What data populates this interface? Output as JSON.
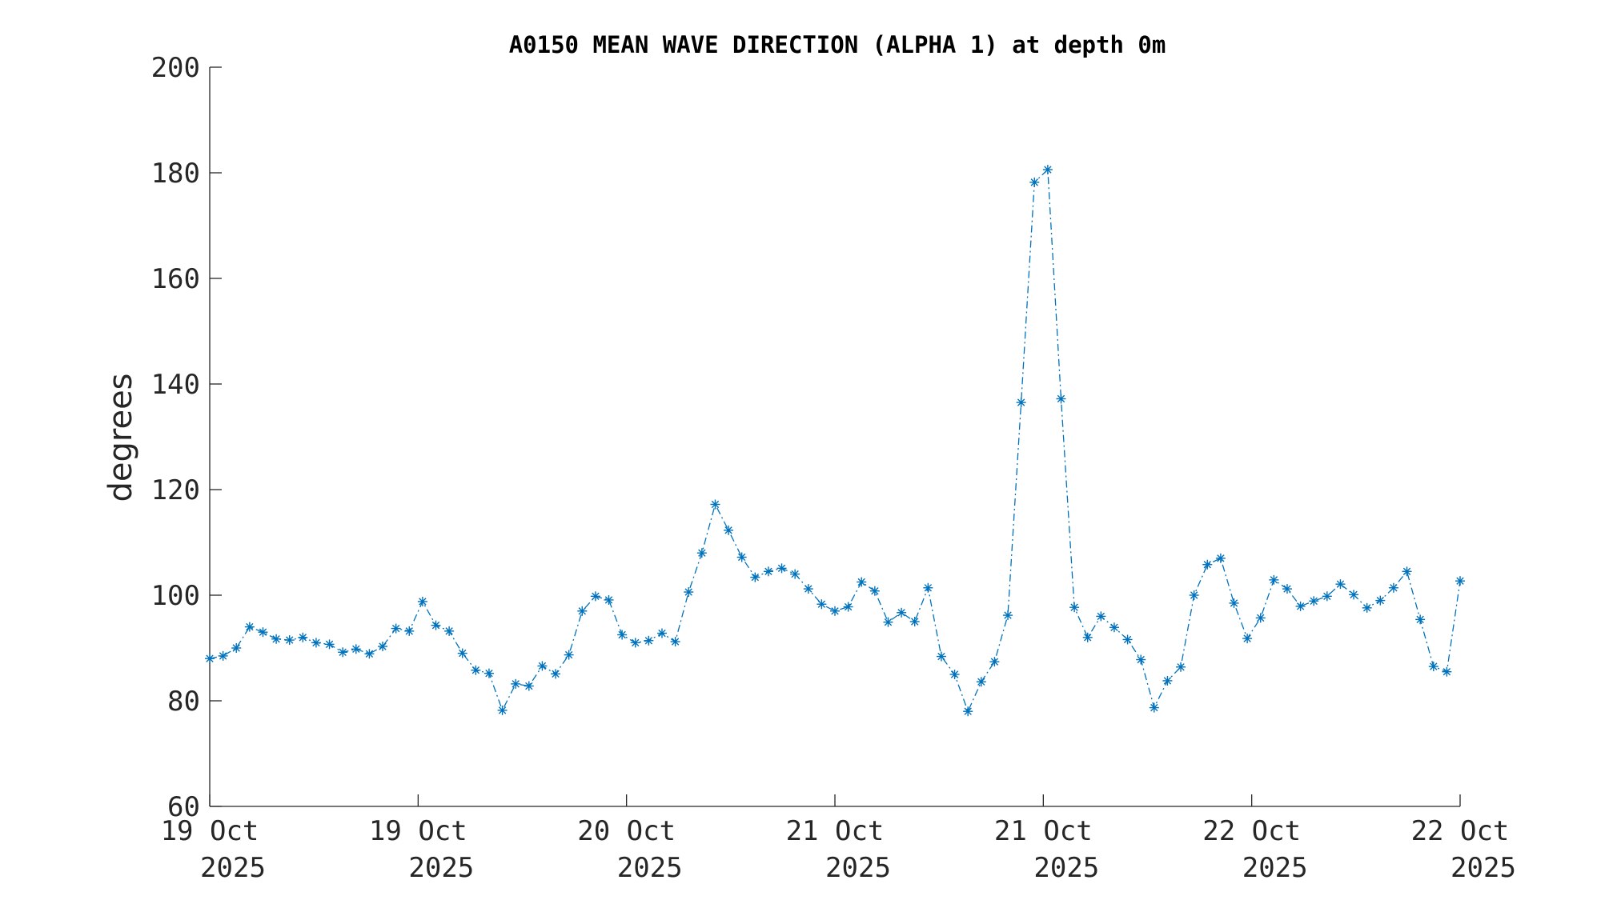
{
  "chart_data": {
    "type": "line",
    "title": "A0150 MEAN WAVE DIRECTION (ALPHA 1) at depth 0m",
    "xlabel": "",
    "ylabel": "degrees",
    "ylim": [
      60,
      200
    ],
    "yticks": [
      60,
      80,
      100,
      120,
      140,
      160,
      180,
      200
    ],
    "x_range": [
      "2025-10-19 00:00",
      "2025-10-22 00:00"
    ],
    "x_tick_labels": [
      {
        "day": "19 Oct",
        "year": "2025"
      },
      {
        "day": "19 Oct",
        "year": "2025"
      },
      {
        "day": "20 Oct",
        "year": "2025"
      },
      {
        "day": "21 Oct",
        "year": "2025"
      },
      {
        "day": "21 Oct",
        "year": "2025"
      },
      {
        "day": "22 Oct",
        "year": "2025"
      },
      {
        "day": "22 Oct",
        "year": "2025"
      }
    ],
    "grid": false,
    "series": [
      {
        "marker": "asterisk",
        "line_style": "dash-dot",
        "color": "#0072BD",
        "values": [
          88,
          88.5,
          90,
          94,
          93,
          91.7,
          91.5,
          92,
          91,
          90.7,
          89.2,
          89.8,
          88.9,
          90.3,
          93.7,
          93.2,
          98.8,
          94.3,
          93.2,
          89,
          85.8,
          85.2,
          78.2,
          83.2,
          82.8,
          86.6,
          85.1,
          88.7,
          97,
          99.8,
          99.1,
          92.5,
          91,
          91.4,
          92.8,
          91.2,
          100.6,
          108,
          117.2,
          112.3,
          107.2,
          103.4,
          104.5,
          105.1,
          104,
          101.2,
          98.3,
          97,
          97.8,
          102.5,
          100.8,
          94.9,
          96.7,
          95,
          101.4,
          88.4,
          85,
          78,
          83.6,
          87.4,
          96.2,
          136.5,
          178.2,
          180.6,
          137.2,
          97.7,
          92,
          96,
          93.9,
          91.6,
          87.8,
          78.7,
          83.8,
          86.4,
          100,
          105.8,
          107,
          98.5,
          91.8,
          95.7,
          102.9,
          101.2,
          97.9,
          98.9,
          99.8,
          102.1,
          100.1,
          97.6,
          99,
          101.4,
          104.5,
          95.4,
          86.5,
          85.5,
          102.7
        ]
      }
    ]
  }
}
